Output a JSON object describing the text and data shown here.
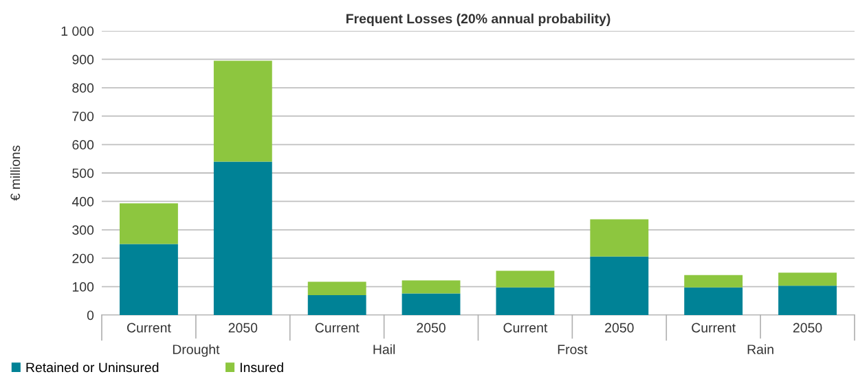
{
  "chart_data": {
    "type": "bar",
    "title": "Frequent Losses (20% annual probability)",
    "ylabel": "€ millions",
    "categories": [
      "Current",
      "2050",
      "Current",
      "2050",
      "Current",
      "2050",
      "Current",
      "2050"
    ],
    "annotations": [
      "Drought",
      "Hail",
      "Frost",
      "Rain"
    ],
    "series": [
      {
        "name": "Retained or Uninsured",
        "color": "#008296",
        "values": [
          250,
          540,
          70,
          76,
          97,
          206,
          97,
          103
        ]
      },
      {
        "name": "Insured",
        "color": "#8dc63f",
        "values": [
          143,
          355,
          47,
          46,
          59,
          131,
          44,
          46
        ]
      }
    ],
    "stacked": true,
    "ylim": [
      0,
      1000
    ],
    "yticks": [
      0,
      100,
      200,
      300,
      400,
      500,
      600,
      700,
      800,
      900,
      {
        "value": 1000,
        "label": "1 000"
      }
    ],
    "grid": "y",
    "legend": "bottom left"
  }
}
